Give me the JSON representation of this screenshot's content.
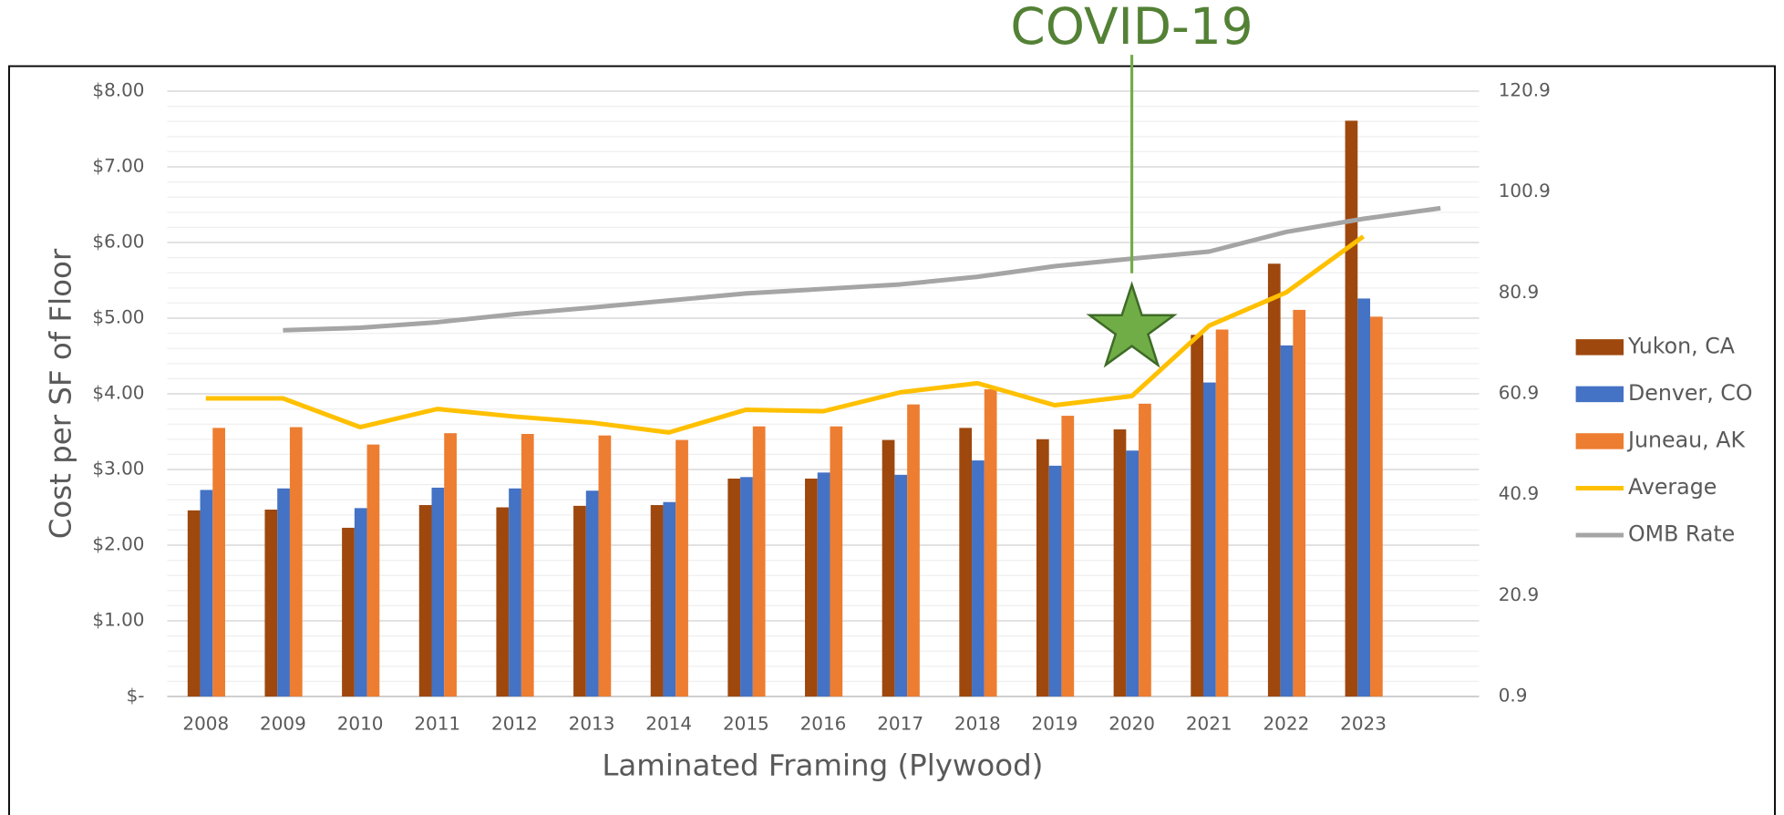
{
  "chart_data": {
    "type": "bar",
    "x_label": "Laminated Framing (Plywood)",
    "y_label": "Cost per SF of Floor",
    "categories": [
      "2008",
      "2009",
      "2010",
      "2011",
      "2012",
      "2013",
      "2014",
      "2015",
      "2016",
      "2017",
      "2018",
      "2019",
      "2020",
      "2021",
      "2022",
      "2023",
      null
    ],
    "series": [
      {
        "name": "Yukon, CA",
        "type": "bar",
        "axis": "y",
        "color": "#9e480e",
        "values": [
          2.46,
          2.47,
          2.23,
          2.53,
          2.5,
          2.52,
          2.53,
          2.88,
          2.88,
          3.39,
          3.55,
          3.4,
          3.53,
          4.78,
          5.72,
          7.61,
          null
        ]
      },
      {
        "name": "Denver, CO",
        "type": "bar",
        "axis": "y",
        "color": "#4472c4",
        "values": [
          2.73,
          2.75,
          2.49,
          2.76,
          2.75,
          2.72,
          2.57,
          2.9,
          2.96,
          2.93,
          3.12,
          3.05,
          3.25,
          4.15,
          4.64,
          5.26,
          null
        ]
      },
      {
        "name": "Juneau, AK",
        "type": "bar",
        "axis": "y",
        "color": "#ed7d31",
        "values": [
          3.55,
          3.56,
          3.33,
          3.48,
          3.47,
          3.45,
          3.39,
          3.57,
          3.57,
          3.86,
          4.06,
          3.71,
          3.87,
          4.85,
          5.11,
          5.02,
          null
        ]
      },
      {
        "name": "Average",
        "type": "line",
        "axis": "y",
        "color": "#ffc000",
        "values": [
          3.94,
          3.94,
          3.56,
          3.8,
          3.7,
          3.62,
          3.49,
          3.79,
          3.77,
          4.02,
          4.14,
          3.85,
          3.97,
          4.9,
          5.34,
          6.08,
          null
        ]
      },
      {
        "name": "OMB Rate",
        "type": "line",
        "axis": "y2",
        "color": "#a5a5a5",
        "values": [
          null,
          73.5,
          74.0,
          75.1,
          76.7,
          78.0,
          79.4,
          80.8,
          81.7,
          82.6,
          84.1,
          86.2,
          87.7,
          89.1,
          93.0,
          95.6,
          97.7
        ]
      }
    ],
    "ylim": [
      0,
      8
    ],
    "yticks": [
      {
        "value": 0,
        "label": "$-"
      },
      {
        "value": 1,
        "label": "$1.00"
      },
      {
        "value": 2,
        "label": "$2.00"
      },
      {
        "value": 3,
        "label": "$3.00"
      },
      {
        "value": 4,
        "label": "$4.00"
      },
      {
        "value": 5,
        "label": "$5.00"
      },
      {
        "value": 6,
        "label": "$6.00"
      },
      {
        "value": 7,
        "label": "$7.00"
      },
      {
        "value": 8,
        "label": "$8.00"
      }
    ],
    "y2lim": [
      0.9,
      120.9
    ],
    "y2ticks": [
      0.9,
      20.9,
      40.9,
      60.9,
      80.9,
      100.9,
      120.9
    ],
    "grid": true,
    "legend": "right",
    "annotation": {
      "text": "COVID-19",
      "category": "2020",
      "color": "#538135"
    }
  }
}
